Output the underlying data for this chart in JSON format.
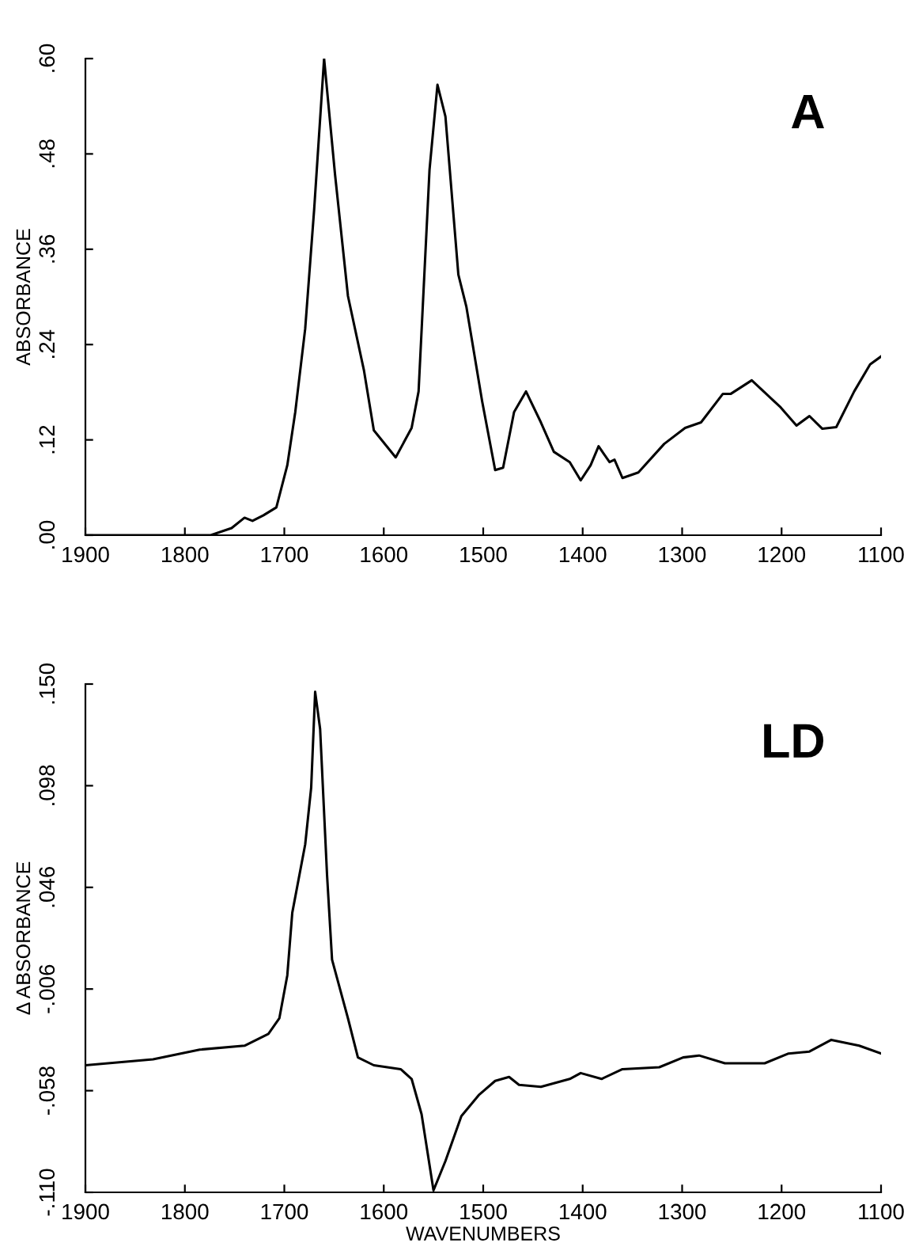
{
  "chart_data": [
    {
      "type": "line",
      "ylabel": "ABSORBANCE",
      "annotations": [
        "A"
      ],
      "color": "#000000",
      "grid": false,
      "marker": "none",
      "line_style": "solid",
      "xlim": [
        1900,
        1100
      ],
      "xticks": [
        1900,
        1800,
        1700,
        1600,
        1500,
        1400,
        1300,
        1200,
        1100
      ],
      "ylim": [
        0,
        0.6
      ],
      "yticks": [
        {
          "value": 0,
          "label": ".00"
        },
        {
          "value": 0.12,
          "label": ".12"
        },
        {
          "value": 0.24,
          "label": ".24"
        },
        {
          "value": 0.36,
          "label": ".36"
        },
        {
          "value": 0.48,
          "label": ".48"
        },
        {
          "value": 0.6,
          "label": ".60"
        }
      ],
      "x": [
        1900,
        1774,
        1753,
        1740,
        1732,
        1721,
        1708,
        1697,
        1689,
        1679,
        1670,
        1660,
        1649,
        1636,
        1620,
        1610,
        1588,
        1572,
        1565,
        1554,
        1546,
        1538,
        1525,
        1517,
        1501,
        1488,
        1480,
        1469,
        1457,
        1442,
        1429,
        1413,
        1402,
        1392,
        1384,
        1373,
        1368,
        1360,
        1344,
        1318,
        1297,
        1281,
        1259,
        1251,
        1230,
        1201,
        1185,
        1172,
        1159,
        1145,
        1127,
        1111,
        1100
      ],
      "values": [
        0,
        0,
        0.009,
        0.022,
        0.018,
        0.025,
        0.035,
        0.088,
        0.155,
        0.26,
        0.41,
        0.6,
        0.454,
        0.301,
        0.208,
        0.132,
        0.098,
        0.135,
        0.181,
        0.46,
        0.567,
        0.527,
        0.328,
        0.288,
        0.168,
        0.082,
        0.085,
        0.155,
        0.181,
        0.142,
        0.105,
        0.092,
        0.069,
        0.088,
        0.112,
        0.092,
        0.095,
        0.072,
        0.079,
        0.115,
        0.135,
        0.142,
        0.178,
        0.178,
        0.195,
        0.161,
        0.138,
        0.15,
        0.134,
        0.136,
        0.181,
        0.215,
        0.225
      ]
    },
    {
      "type": "line",
      "ylabel": "Δ ABSORBANCE",
      "xlabel": "WAVENUMBERS",
      "annotations": [
        "LD"
      ],
      "color": "#000000",
      "grid": false,
      "marker": "none",
      "line_style": "solid",
      "xlim": [
        1900,
        1100
      ],
      "xticks": [
        1900,
        1800,
        1700,
        1600,
        1500,
        1400,
        1300,
        1200,
        1100
      ],
      "ylim": [
        -0.11,
        0.15
      ],
      "yticks": [
        {
          "value": -0.11,
          "label": "-.110"
        },
        {
          "value": -0.058,
          "label": "-.058"
        },
        {
          "value": -0.006,
          "label": "-.006"
        },
        {
          "value": 0.046,
          "label": ".046"
        },
        {
          "value": 0.098,
          "label": ".098"
        },
        {
          "value": 0.15,
          "label": ".150"
        }
      ],
      "x": [
        1900,
        1832,
        1785,
        1740,
        1716,
        1705,
        1697,
        1692,
        1679,
        1673,
        1669,
        1664,
        1657,
        1652,
        1636,
        1626,
        1610,
        1583,
        1572,
        1562,
        1550,
        1538,
        1522,
        1504,
        1488,
        1474,
        1464,
        1442,
        1413,
        1402,
        1381,
        1360,
        1323,
        1299,
        1283,
        1257,
        1217,
        1193,
        1172,
        1150,
        1122,
        1100
      ],
      "values": [
        -0.045,
        -0.042,
        -0.037,
        -0.035,
        -0.029,
        -0.021,
        0.001,
        0.033,
        0.068,
        0.097,
        0.146,
        0.127,
        0.052,
        0.009,
        -0.021,
        -0.041,
        -0.045,
        -0.047,
        -0.052,
        -0.07,
        -0.109,
        -0.094,
        -0.071,
        -0.06,
        -0.053,
        -0.051,
        -0.055,
        -0.056,
        -0.052,
        -0.049,
        -0.052,
        -0.047,
        -0.046,
        -0.041,
        -0.04,
        -0.044,
        -0.044,
        -0.039,
        -0.038,
        -0.032,
        -0.035,
        -0.039
      ]
    }
  ]
}
